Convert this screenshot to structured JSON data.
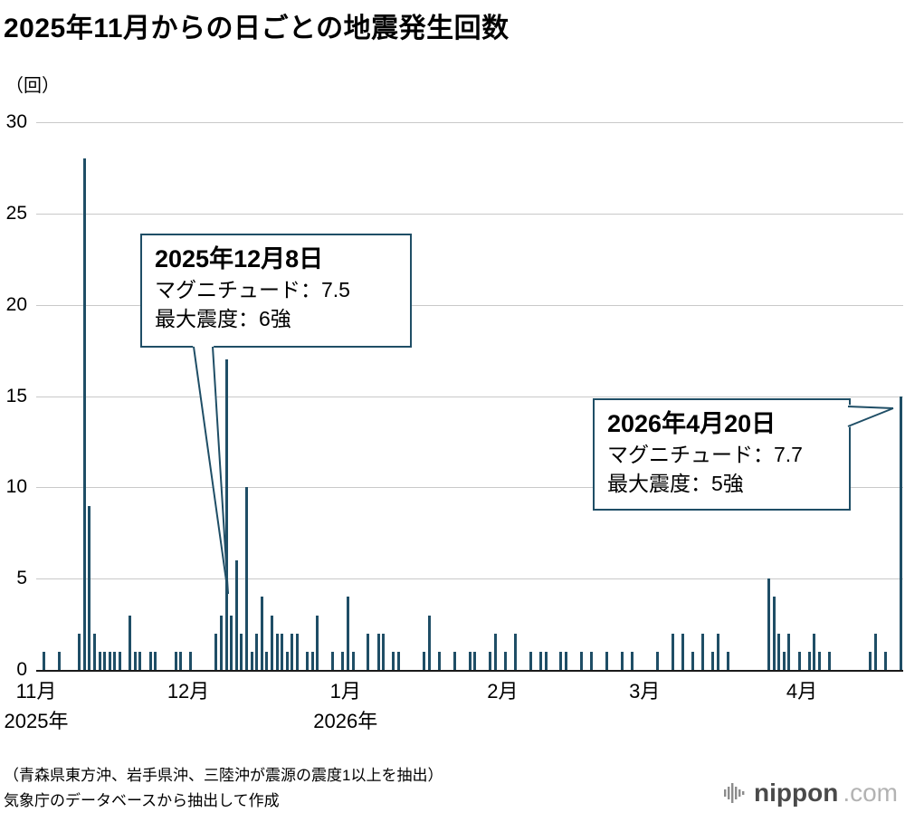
{
  "title": "2025年11月からの日ごとの地震発生回数",
  "unit_label": "（回）",
  "chart_data": {
    "type": "bar",
    "title": "2025年11月からの日ごとの地震発生回数",
    "ylabel": "回",
    "ylim": [
      0,
      30
    ],
    "yticks": [
      0,
      5,
      10,
      15,
      20,
      25,
      30
    ],
    "grid": true,
    "months": [
      {
        "label": "11月",
        "year": "2025年",
        "day_index": 0
      },
      {
        "label": "12月",
        "day_index": 30
      },
      {
        "label": "1月",
        "year": "2026年",
        "day_index": 61
      },
      {
        "label": "2月",
        "day_index": 92
      },
      {
        "label": "3月",
        "day_index": 120
      },
      {
        "label": "4月",
        "day_index": 151
      }
    ],
    "daily_counts": [
      0,
      1,
      0,
      0,
      1,
      0,
      0,
      0,
      2,
      28,
      9,
      2,
      1,
      1,
      1,
      1,
      1,
      0,
      3,
      1,
      1,
      0,
      1,
      1,
      0,
      0,
      0,
      1,
      1,
      0,
      1,
      0,
      0,
      0,
      0,
      2,
      3,
      17,
      3,
      6,
      2,
      10,
      1,
      2,
      4,
      1,
      3,
      2,
      2,
      1,
      2,
      2,
      0,
      1,
      1,
      3,
      0,
      0,
      1,
      0,
      1,
      4,
      1,
      0,
      0,
      2,
      0,
      2,
      2,
      0,
      1,
      1,
      0,
      0,
      0,
      0,
      1,
      3,
      0,
      1,
      0,
      0,
      1,
      0,
      0,
      1,
      1,
      0,
      0,
      1,
      2,
      0,
      1,
      0,
      2,
      0,
      0,
      1,
      0,
      1,
      1,
      0,
      0,
      1,
      1,
      0,
      0,
      1,
      0,
      1,
      0,
      0,
      1,
      0,
      0,
      1,
      0,
      1,
      0,
      0,
      0,
      0,
      1,
      0,
      0,
      2,
      0,
      2,
      0,
      1,
      0,
      2,
      0,
      1,
      2,
      0,
      1,
      0,
      0,
      0,
      0,
      0,
      0,
      0,
      5,
      4,
      2,
      1,
      2,
      0,
      1,
      0,
      1,
      2,
      1,
      0,
      1,
      0,
      0,
      0,
      0,
      0,
      0,
      0,
      1,
      2,
      0,
      1,
      0,
      0,
      15
    ]
  },
  "annotations": [
    {
      "date": "2025年12月8日",
      "magnitude": "マグニチュード：7.5",
      "intensity": "最大震度：6強"
    },
    {
      "date": "2026年4月20日",
      "magnitude": "マグニチュード：7.7",
      "intensity": "最大震度：5強"
    }
  ],
  "notes": [
    "（青森県東方沖、岩手県沖、三陸沖が震源の震度1以上を抽出）",
    "気象庁のデータベースから抽出して作成"
  ],
  "logo": {
    "name": "nippon.com",
    "text": "nippon",
    "suffix": ".com"
  },
  "colors": {
    "bar": "#1f4e66",
    "grid": "#c9c9c9",
    "axis": "#1a1a1a",
    "callout_border": "#1f4e66",
    "logo_icon": "#8c8c8c"
  }
}
